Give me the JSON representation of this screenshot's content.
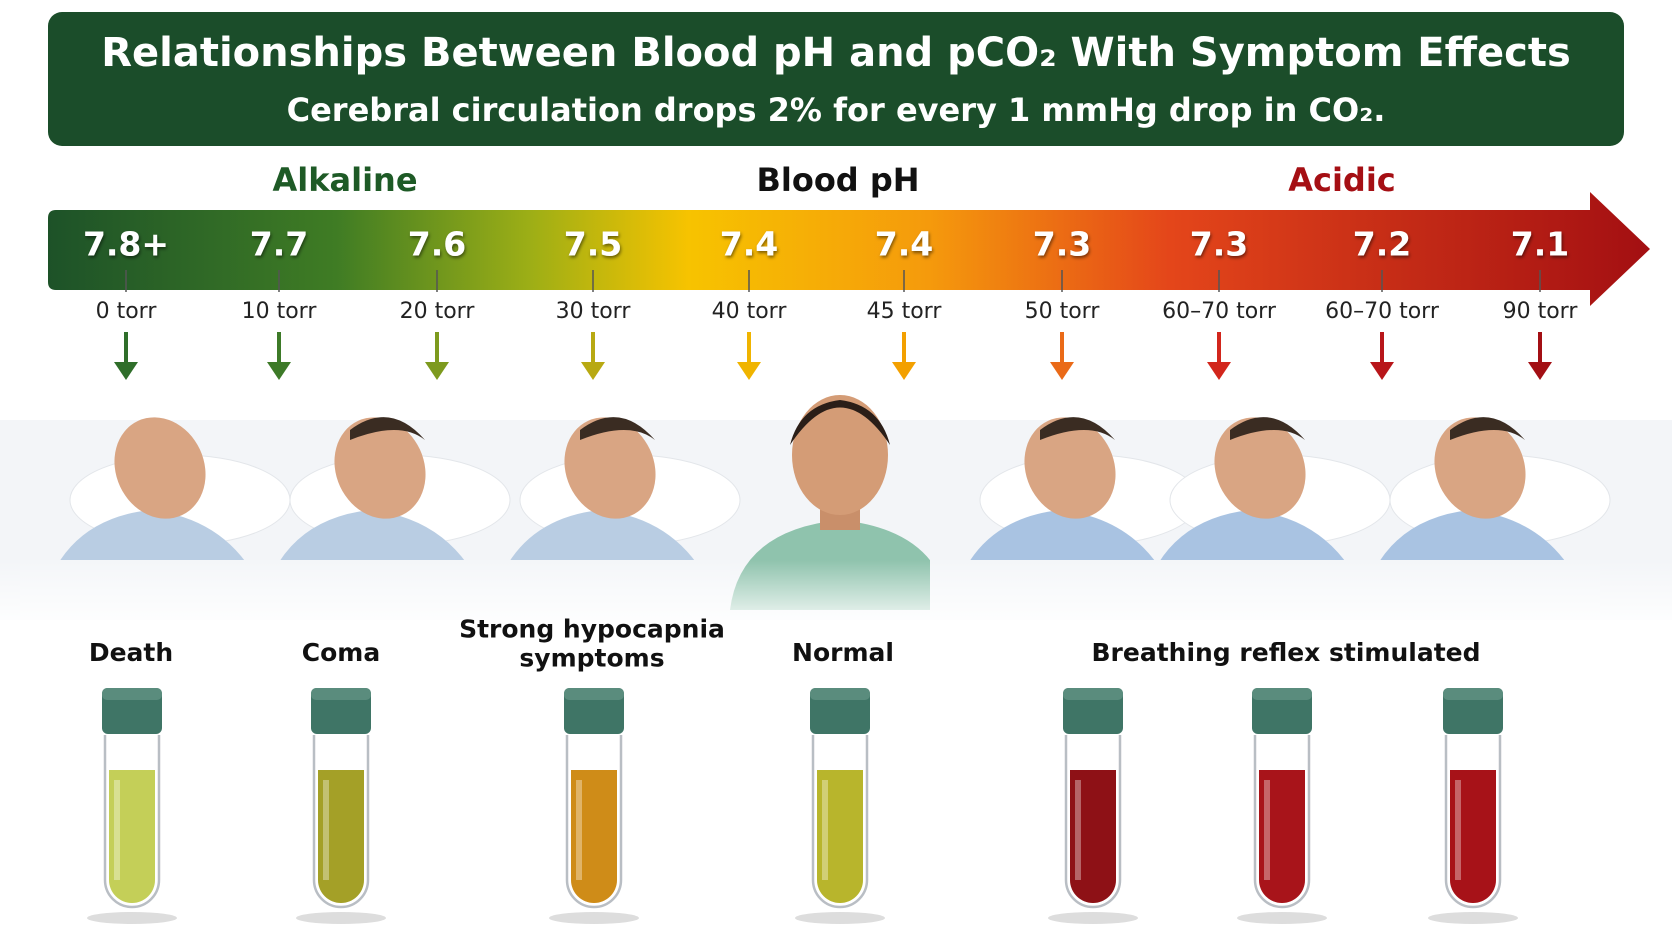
{
  "header": {
    "title": "Relationships Between Blood pH and pCO₂ With Symptom Effects",
    "subtitle": "Cerebral circulation drops 2% for every 1 mmHg drop in CO₂."
  },
  "scale": {
    "left_label": "Alkaline",
    "center_label": "Blood pH",
    "right_label": "Acidic",
    "stops": [
      {
        "ph": "7.8+",
        "pco2": "0 torr"
      },
      {
        "ph": "7.7",
        "pco2": "10 torr"
      },
      {
        "ph": "7.6",
        "pco2": "20 torr"
      },
      {
        "ph": "7.5",
        "pco2": "30 torr"
      },
      {
        "ph": "7.4",
        "pco2": "40 torr"
      },
      {
        "ph": "7.4",
        "pco2": "45 torr"
      },
      {
        "ph": "7.3",
        "pco2": "50 torr"
      },
      {
        "ph": "7.3",
        "pco2": "60–70 torr"
      },
      {
        "ph": "7.2",
        "pco2": "60–70 torr"
      },
      {
        "ph": "7.1",
        "pco2": "90 torr"
      }
    ]
  },
  "symptoms": [
    {
      "lines": [
        "Death"
      ]
    },
    {
      "lines": [
        "Coma"
      ]
    },
    {
      "lines": [
        "Strong hypocapnia",
        "symptoms"
      ]
    },
    {
      "lines": [
        "Normal"
      ]
    },
    {
      "lines": [
        "Breathing reflex stimulated"
      ]
    }
  ]
}
